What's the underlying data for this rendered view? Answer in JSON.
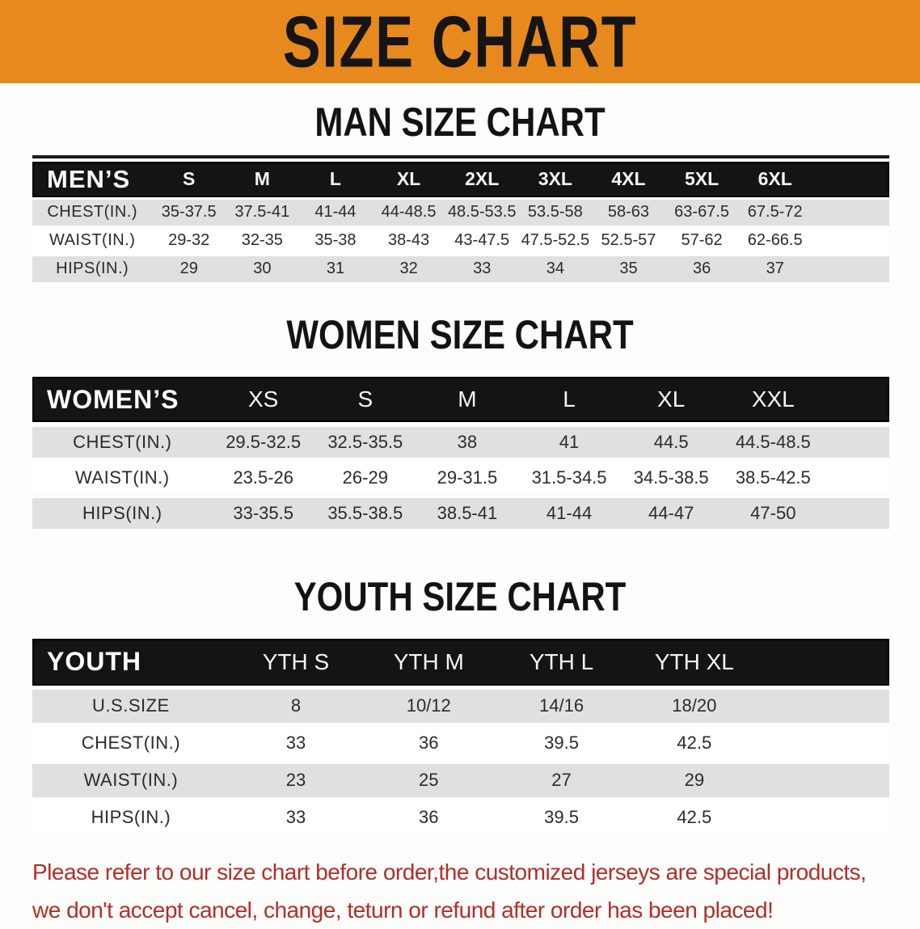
{
  "banner": {
    "title": "SIZE CHART"
  },
  "sections": [
    {
      "id": "men",
      "heading": "MAN SIZE CHART",
      "group_label": "MEN’S",
      "sizes": [
        "S",
        "M",
        "L",
        "XL",
        "2XL",
        "3XL",
        "4XL",
        "5XL",
        "6XL"
      ],
      "rows": [
        {
          "label": "CHEST(IN.)",
          "values": [
            "35-37.5",
            "37.5-41",
            "41-44",
            "44-48.5",
            "48.5-53.5",
            "53.5-58",
            "58-63",
            "63-67.5",
            "67.5-72"
          ]
        },
        {
          "label": "WAIST(IN.)",
          "values": [
            "29-32",
            "32-35",
            "35-38",
            "38-43",
            "43-47.5",
            "47.5-52.5",
            "52.5-57",
            "57-62",
            "62-66.5"
          ]
        },
        {
          "label": "HIPS(IN.)",
          "values": [
            "29",
            "30",
            "31",
            "32",
            "33",
            "34",
            "35",
            "36",
            "37"
          ]
        }
      ]
    },
    {
      "id": "women",
      "heading": "WOMEN SIZE CHART",
      "group_label": "WOMEN’S",
      "sizes": [
        "XS",
        "S",
        "M",
        "L",
        "XL",
        "XXL"
      ],
      "rows": [
        {
          "label": "CHEST(IN.)",
          "values": [
            "29.5-32.5",
            "32.5-35.5",
            "38",
            "41",
            "44.5",
            "44.5-48.5"
          ]
        },
        {
          "label": "WAIST(IN.)",
          "values": [
            "23.5-26",
            "26-29",
            "29-31.5",
            "31.5-34.5",
            "34.5-38.5",
            "38.5-42.5"
          ]
        },
        {
          "label": "HIPS(IN.)",
          "values": [
            "33-35.5",
            "35.5-38.5",
            "38.5-41",
            "41-44",
            "44-47",
            "47-50"
          ]
        }
      ]
    },
    {
      "id": "youth",
      "heading": "YOUTH SIZE CHART",
      "group_label": "YOUTH",
      "sizes": [
        "YTH S",
        "YTH M",
        "YTH L",
        "YTH XL"
      ],
      "rows": [
        {
          "label": "U.S.SIZE",
          "values": [
            "8",
            "10/12",
            "14/16",
            "18/20"
          ]
        },
        {
          "label": "CHEST(IN.)",
          "values": [
            "33",
            "36",
            "39.5",
            "42.5"
          ]
        },
        {
          "label": "WAIST(IN.)",
          "values": [
            "23",
            "25",
            "27",
            "29"
          ]
        },
        {
          "label": "HIPS(IN.)",
          "values": [
            "33",
            "36",
            "39.5",
            "42.5"
          ]
        }
      ]
    }
  ],
  "disclaimer": {
    "line1": "Please refer to our size chart before order,the customized jerseys are special products,",
    "line2": "we don't accept cancel, change, teturn or refund after order has been placed!"
  },
  "colors": {
    "banner_bg": "#E8891E",
    "band_bg": "#141414",
    "shaded_row": "#E0E0E0",
    "body_text": "#2B2B2B",
    "disclaimer_text": "#B22E28"
  }
}
